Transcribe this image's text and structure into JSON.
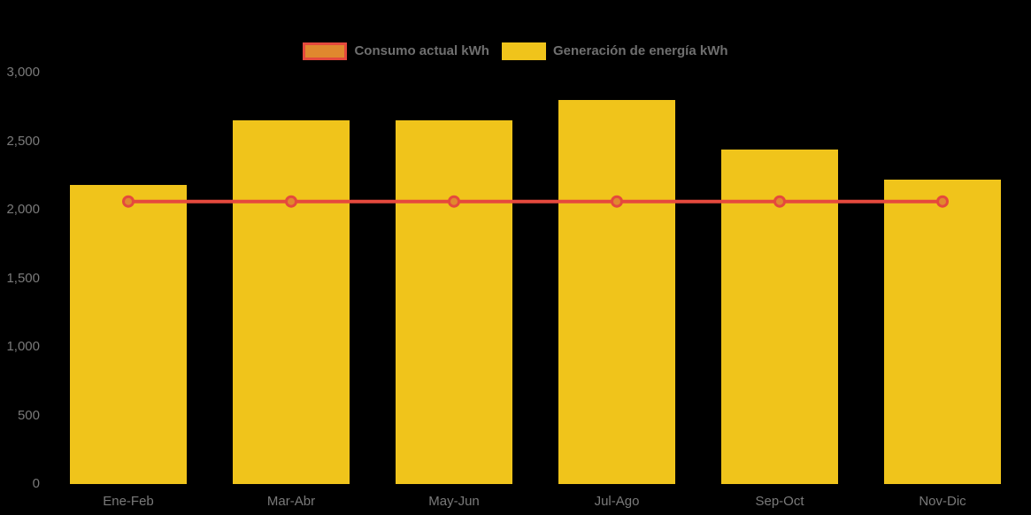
{
  "colors": {
    "background": "#000000",
    "bar": "#F0C41B",
    "line": "#E5493D",
    "marker_fill": "#E0882E",
    "marker_stroke": "#E5493D",
    "axis_label": "#7A7A7A",
    "legend_label": "#6F6F6F"
  },
  "legend": {
    "items": [
      {
        "label": "Consumo actual kWh",
        "series_type": "line",
        "swatch_fill": "#E0882E",
        "swatch_border": "#E5493D"
      },
      {
        "label": "Generación de energía kWh",
        "series_type": "bar",
        "swatch_fill": "#F0C41B"
      }
    ]
  },
  "chart_data": {
    "type": "bar",
    "title": "",
    "categories": [
      "Ene-Feb",
      "Mar-Abr",
      "May-Jun",
      "Jul-Ago",
      "Sep-Oct",
      "Nov-Dic"
    ],
    "series": [
      {
        "name": "Generación de energía kWh",
        "type": "bar",
        "color": "#F0C41B",
        "values": [
          2180,
          2650,
          2650,
          2800,
          2440,
          2220
        ]
      },
      {
        "name": "Consumo actual kWh",
        "type": "line",
        "color": "#E5493D",
        "marker_fill": "#E0882E",
        "values": [
          2060,
          2060,
          2060,
          2060,
          2060,
          2060
        ]
      }
    ],
    "xlabel": "",
    "ylabel": "",
    "ylim": [
      0,
      3000
    ],
    "yticks": [
      0,
      500,
      1000,
      1500,
      2000,
      2500,
      3000
    ],
    "ytick_labels": [
      "0",
      "500",
      "1,000",
      "1,500",
      "2,000",
      "2,500",
      "3,000"
    ],
    "grid": false,
    "legend_position": "top-center"
  }
}
